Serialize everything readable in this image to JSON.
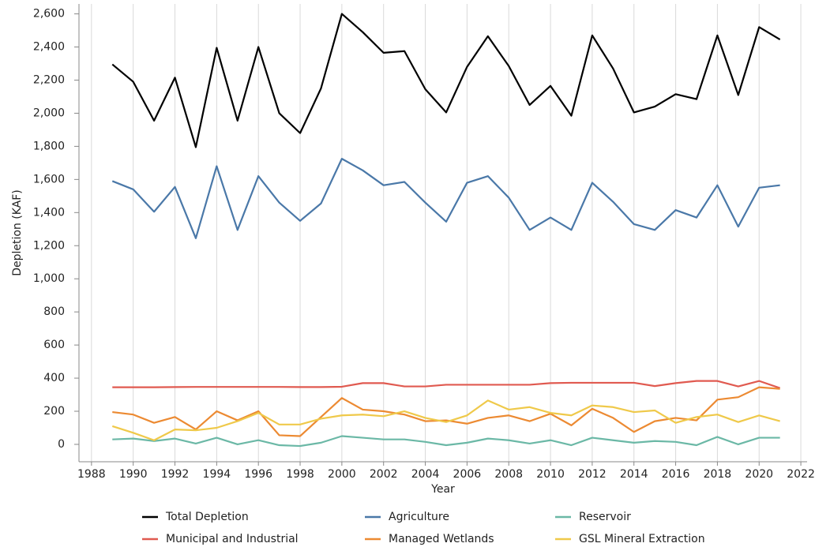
{
  "chart_data": {
    "type": "line",
    "x_label": "Year",
    "y_label": "Depletion (KAF)",
    "x": [
      1989,
      1990,
      1991,
      1992,
      1993,
      1994,
      1995,
      1996,
      1997,
      1998,
      1999,
      2000,
      2001,
      2002,
      2003,
      2004,
      2005,
      2006,
      2007,
      2008,
      2009,
      2010,
      2011,
      2012,
      2013,
      2014,
      2015,
      2016,
      2017,
      2018,
      2019,
      2020,
      2021
    ],
    "series": [
      {
        "name": "Total Depletion",
        "color": "#000000",
        "values": [
          2295,
          2190,
          1955,
          2215,
          1795,
          2395,
          1955,
          2400,
          2000,
          1880,
          2150,
          2600,
          2490,
          2365,
          2375,
          2145,
          2005,
          2280,
          2465,
          2285,
          2050,
          2165,
          1985,
          2470,
          2270,
          2005,
          2040,
          2115,
          2085,
          2470,
          2110,
          2520,
          2445
        ]
      },
      {
        "name": "Agriculture",
        "color": "#4a78a8",
        "values": [
          1590,
          1540,
          1405,
          1555,
          1245,
          1680,
          1295,
          1620,
          1460,
          1350,
          1455,
          1725,
          1655,
          1565,
          1585,
          1460,
          1345,
          1580,
          1620,
          1490,
          1295,
          1370,
          1295,
          1580,
          1465,
          1330,
          1295,
          1415,
          1370,
          1565,
          1315,
          1550,
          1565
        ]
      },
      {
        "name": "Reservoir",
        "color": "#6bb8a6",
        "values": [
          30,
          35,
          20,
          35,
          5,
          40,
          0,
          25,
          -5,
          -10,
          10,
          50,
          40,
          30,
          30,
          15,
          -5,
          10,
          35,
          25,
          5,
          25,
          -5,
          40,
          25,
          10,
          20,
          15,
          -5,
          45,
          0,
          40,
          40
        ]
      },
      {
        "name": "Municipal and Industrial",
        "color": "#e05a50",
        "values": [
          345,
          345,
          345,
          346,
          347,
          347,
          347,
          347,
          347,
          346,
          346,
          348,
          370,
          370,
          350,
          350,
          360,
          360,
          360,
          360,
          360,
          370,
          372,
          372,
          372,
          372,
          352,
          370,
          383,
          383,
          350,
          383,
          340
        ]
      },
      {
        "name": "Managed Wetlands",
        "color": "#ec8a32",
        "values": [
          195,
          180,
          130,
          165,
          90,
          200,
          145,
          200,
          55,
          50,
          165,
          280,
          210,
          200,
          180,
          140,
          145,
          125,
          160,
          175,
          140,
          185,
          115,
          215,
          160,
          75,
          140,
          160,
          145,
          270,
          285,
          345,
          335
        ]
      },
      {
        "name": "GSL Mineral Extraction",
        "color": "#efc94a",
        "values": [
          110,
          70,
          25,
          90,
          85,
          100,
          140,
          190,
          120,
          120,
          155,
          175,
          180,
          170,
          200,
          160,
          135,
          175,
          265,
          210,
          225,
          190,
          175,
          235,
          225,
          195,
          205,
          130,
          165,
          180,
          135,
          175,
          140
        ]
      }
    ],
    "xlim": [
      1987.4,
      2022.3
    ],
    "xticks": [
      1988,
      1990,
      1992,
      1994,
      1996,
      1998,
      2000,
      2002,
      2004,
      2006,
      2008,
      2010,
      2012,
      2014,
      2016,
      2018,
      2020,
      2022
    ],
    "ylim": [
      -105,
      2660
    ],
    "yticks": [
      0,
      200,
      400,
      600,
      800,
      {
        "value": 1000,
        "label": "1,000"
      },
      {
        "value": 1200,
        "label": "1,200"
      },
      {
        "value": 1400,
        "label": "1,400"
      },
      {
        "value": 1600,
        "label": "1,600"
      },
      {
        "value": 1800,
        "label": "1,800"
      },
      {
        "value": 2000,
        "label": "2,000"
      },
      {
        "value": 2200,
        "label": "2,200"
      },
      {
        "value": 2400,
        "label": "2,400"
      },
      {
        "value": 2600,
        "label": "2,600"
      }
    ],
    "grid": true
  }
}
